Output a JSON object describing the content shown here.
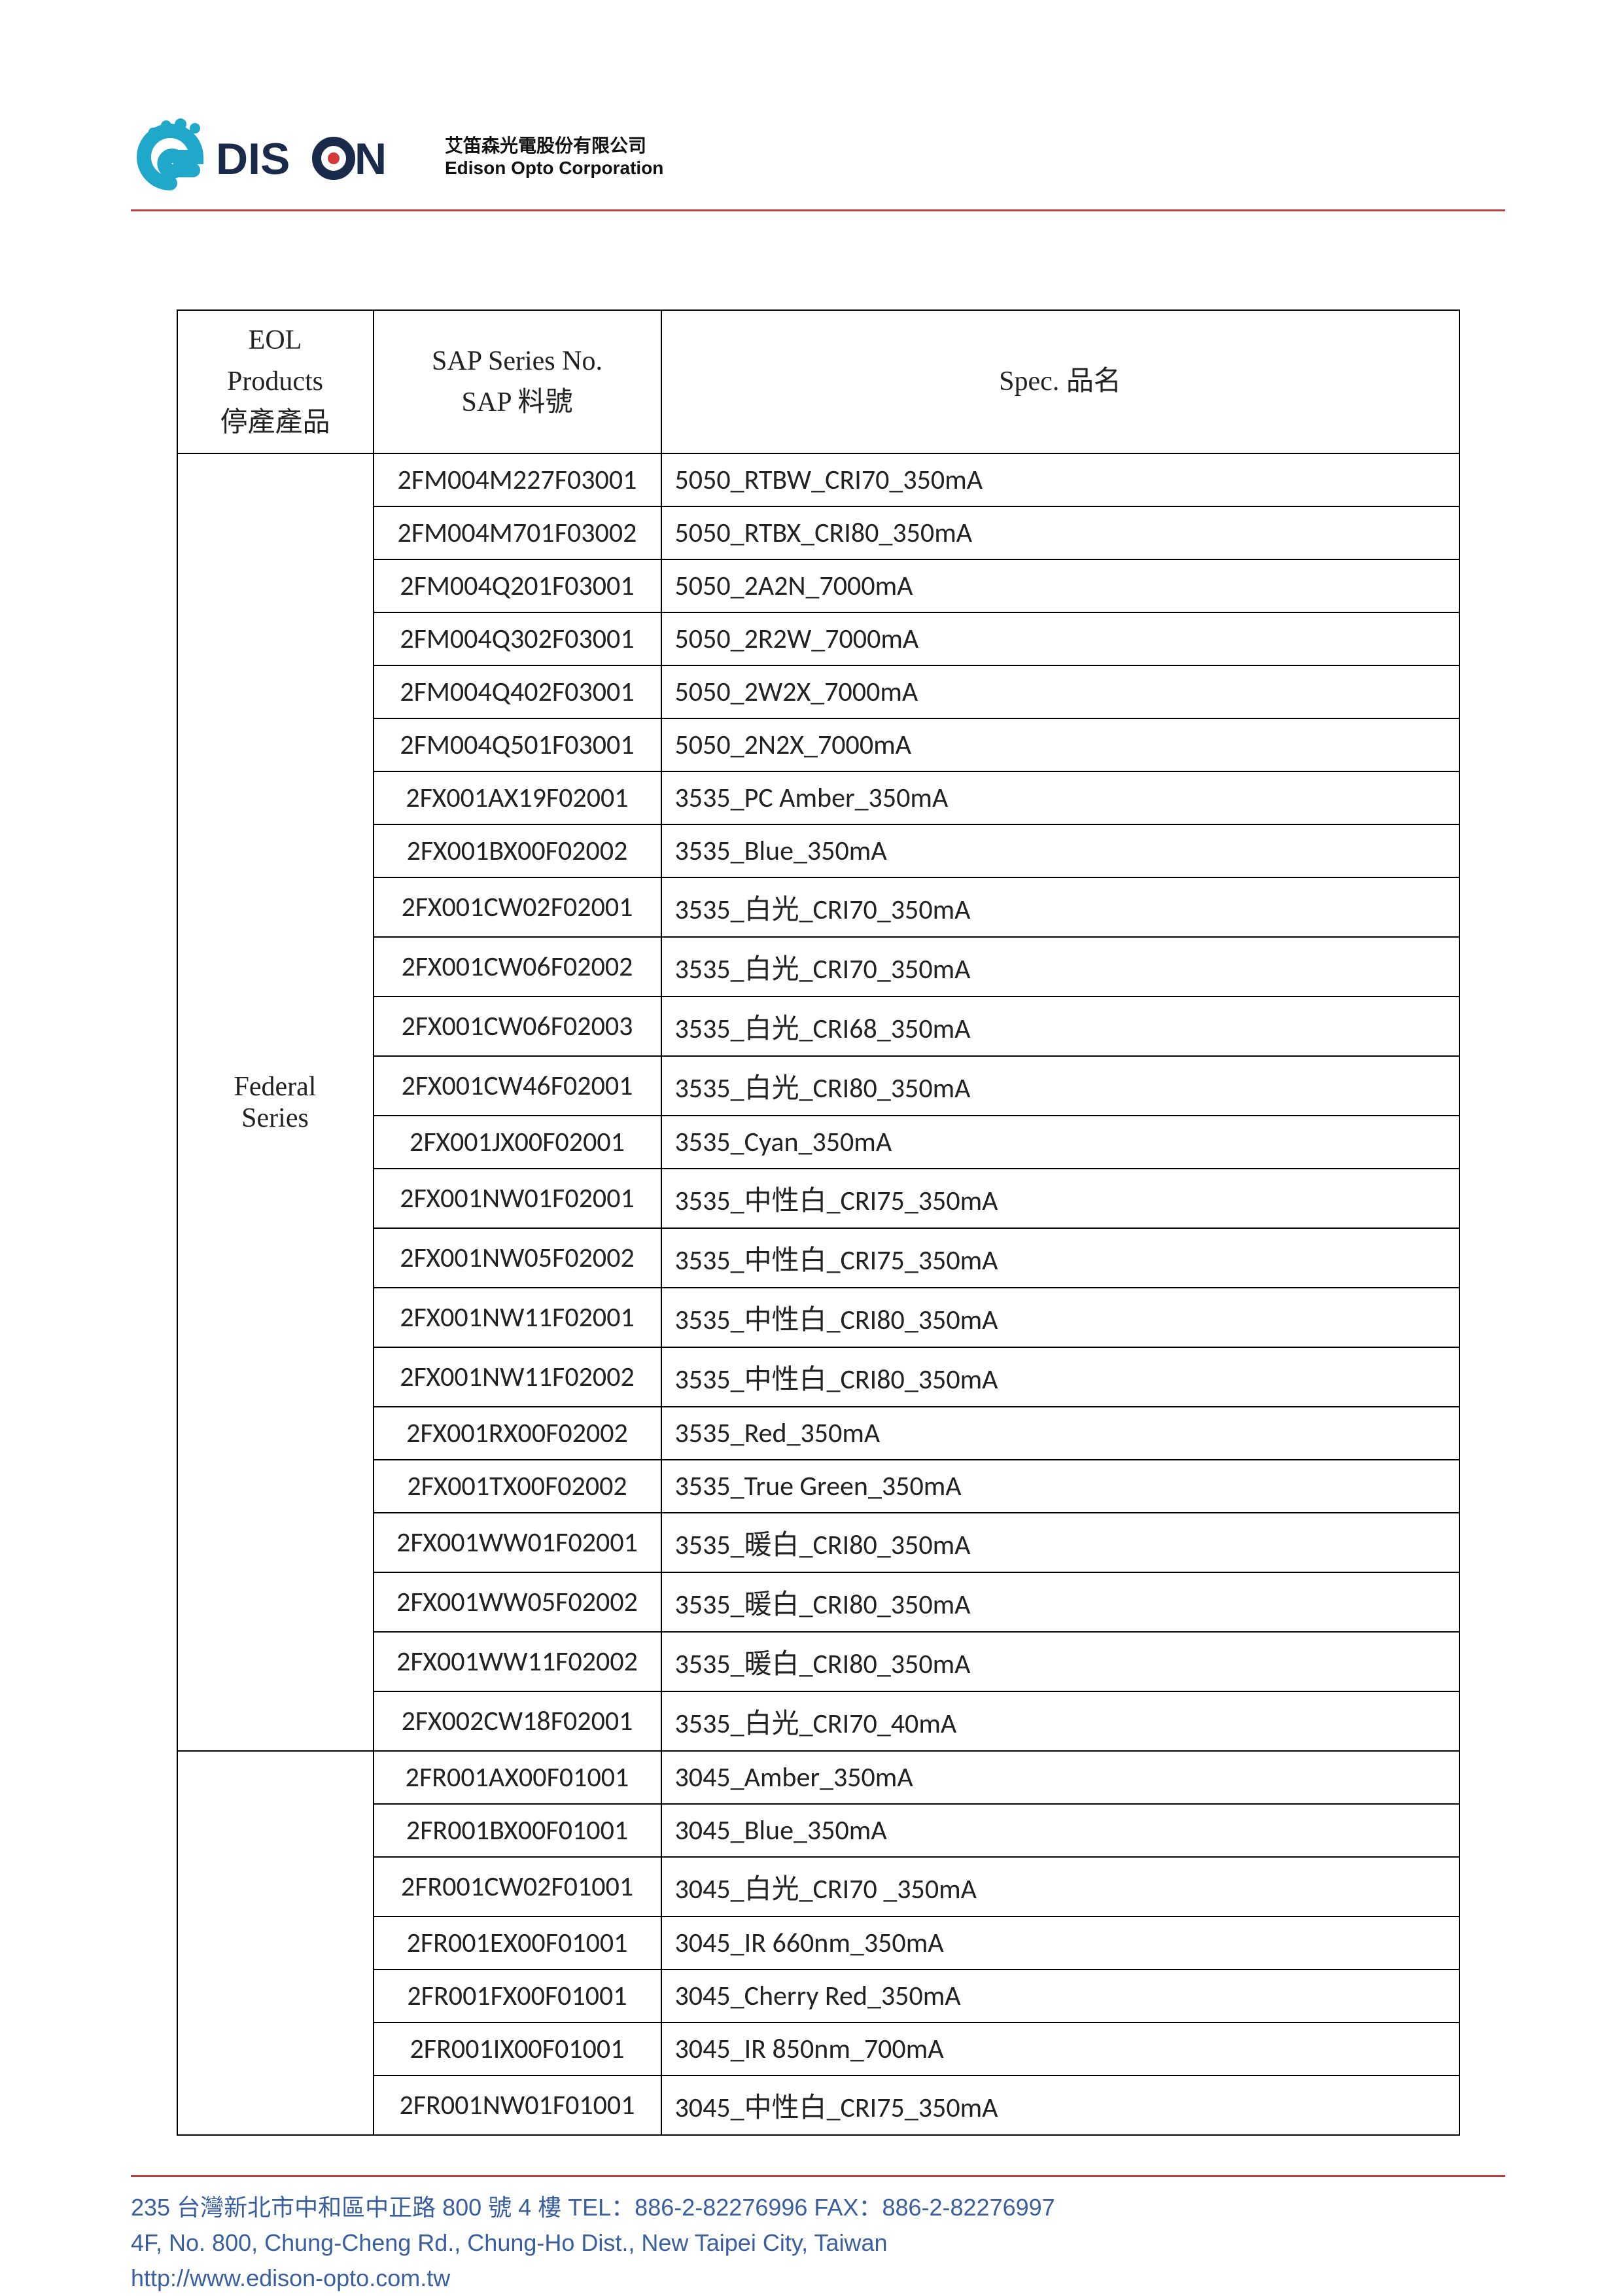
{
  "company": {
    "name_zh": "艾笛森光電股份有限公司",
    "name_en": "Edison Opto Corporation",
    "logo_text": "EDISON",
    "logo_colors": {
      "cyan": "#1fa8c9",
      "navy": "#1a2a4a",
      "red": "#d43a3a"
    }
  },
  "divider_color": "#c14040",
  "table": {
    "headers": {
      "col1_line1": "EOL",
      "col1_line2": "Products",
      "col1_line3": "停產產品",
      "col2_line1": "SAP Series No.",
      "col2_line2": "SAP 料號",
      "col3": "Spec.   品名"
    },
    "groups": [
      {
        "series": "Federal\nSeries",
        "rows": [
          {
            "sap": "2FM004M227F03001",
            "spec": "5050_RTBW_CRI70_350mA"
          },
          {
            "sap": "2FM004M701F03002",
            "spec": "5050_RTBX_CRI80_350mA"
          },
          {
            "sap": "2FM004Q201F03001",
            "spec": "5050_2A2N_7000mA"
          },
          {
            "sap": "2FM004Q302F03001",
            "spec": "5050_2R2W_7000mA"
          },
          {
            "sap": "2FM004Q402F03001",
            "spec": "5050_2W2X_7000mA"
          },
          {
            "sap": "2FM004Q501F03001",
            "spec": "5050_2N2X_7000mA"
          },
          {
            "sap": "2FX001AX19F02001",
            "spec": "3535_PC Amber_350mA"
          },
          {
            "sap": "2FX001BX00F02002",
            "spec": "3535_Blue_350mA"
          },
          {
            "sap": "2FX001CW02F02001",
            "spec": "3535_白光_CRI70_350mA"
          },
          {
            "sap": "2FX001CW06F02002",
            "spec": "3535_白光_CRI70_350mA"
          },
          {
            "sap": "2FX001CW06F02003",
            "spec": "3535_白光_CRI68_350mA"
          },
          {
            "sap": "2FX001CW46F02001",
            "spec": "3535_白光_CRI80_350mA"
          },
          {
            "sap": "2FX001JX00F02001",
            "spec": "3535_Cyan_350mA"
          },
          {
            "sap": "2FX001NW01F02001",
            "spec": "3535_中性白_CRI75_350mA"
          },
          {
            "sap": "2FX001NW05F02002",
            "spec": "3535_中性白_CRI75_350mA"
          },
          {
            "sap": "2FX001NW11F02001",
            "spec": "3535_中性白_CRI80_350mA"
          },
          {
            "sap": "2FX001NW11F02002",
            "spec": "3535_中性白_CRI80_350mA"
          },
          {
            "sap": "2FX001RX00F02002",
            "spec": "3535_Red_350mA"
          },
          {
            "sap": "2FX001TX00F02002",
            "spec": "3535_True Green_350mA"
          },
          {
            "sap": "2FX001WW01F02001",
            "spec": "3535_暖白_CRI80_350mA"
          },
          {
            "sap": "2FX001WW05F02002",
            "spec": "3535_暖白_CRI80_350mA"
          },
          {
            "sap": "2FX001WW11F02002",
            "spec": "3535_暖白_CRI80_350mA"
          },
          {
            "sap": "2FX002CW18F02001",
            "spec": "3535_白光_CRI70_40mA"
          }
        ]
      },
      {
        "series": "",
        "rows": [
          {
            "sap": "2FR001AX00F01001",
            "spec": "3045_Amber_350mA"
          },
          {
            "sap": "2FR001BX00F01001",
            "spec": "3045_Blue_350mA"
          },
          {
            "sap": "2FR001CW02F01001",
            "spec": "3045_白光_CRI70 _350mA"
          },
          {
            "sap": "2FR001EX00F01001",
            "spec": "3045_IR 660nm_350mA"
          },
          {
            "sap": "2FR001FX00F01001",
            "spec": "3045_Cherry Red_350mA"
          },
          {
            "sap": "2FR001IX00F01001",
            "spec": "3045_IR 850nm_700mA"
          },
          {
            "sap": "2FR001NW01F01001",
            "spec": "3045_中性白_CRI75_350mA"
          }
        ]
      }
    ]
  },
  "footer": {
    "line1": "235 台灣新北市中和區中正路 800 號 4 樓  TEL：886-2-82276996 FAX：886-2-82276997",
    "line2": "4F, No. 800, Chung-Cheng Rd., Chung-Ho Dist., New Taipei City, Taiwan",
    "line3": "http://www.edison-opto.com.tw"
  }
}
